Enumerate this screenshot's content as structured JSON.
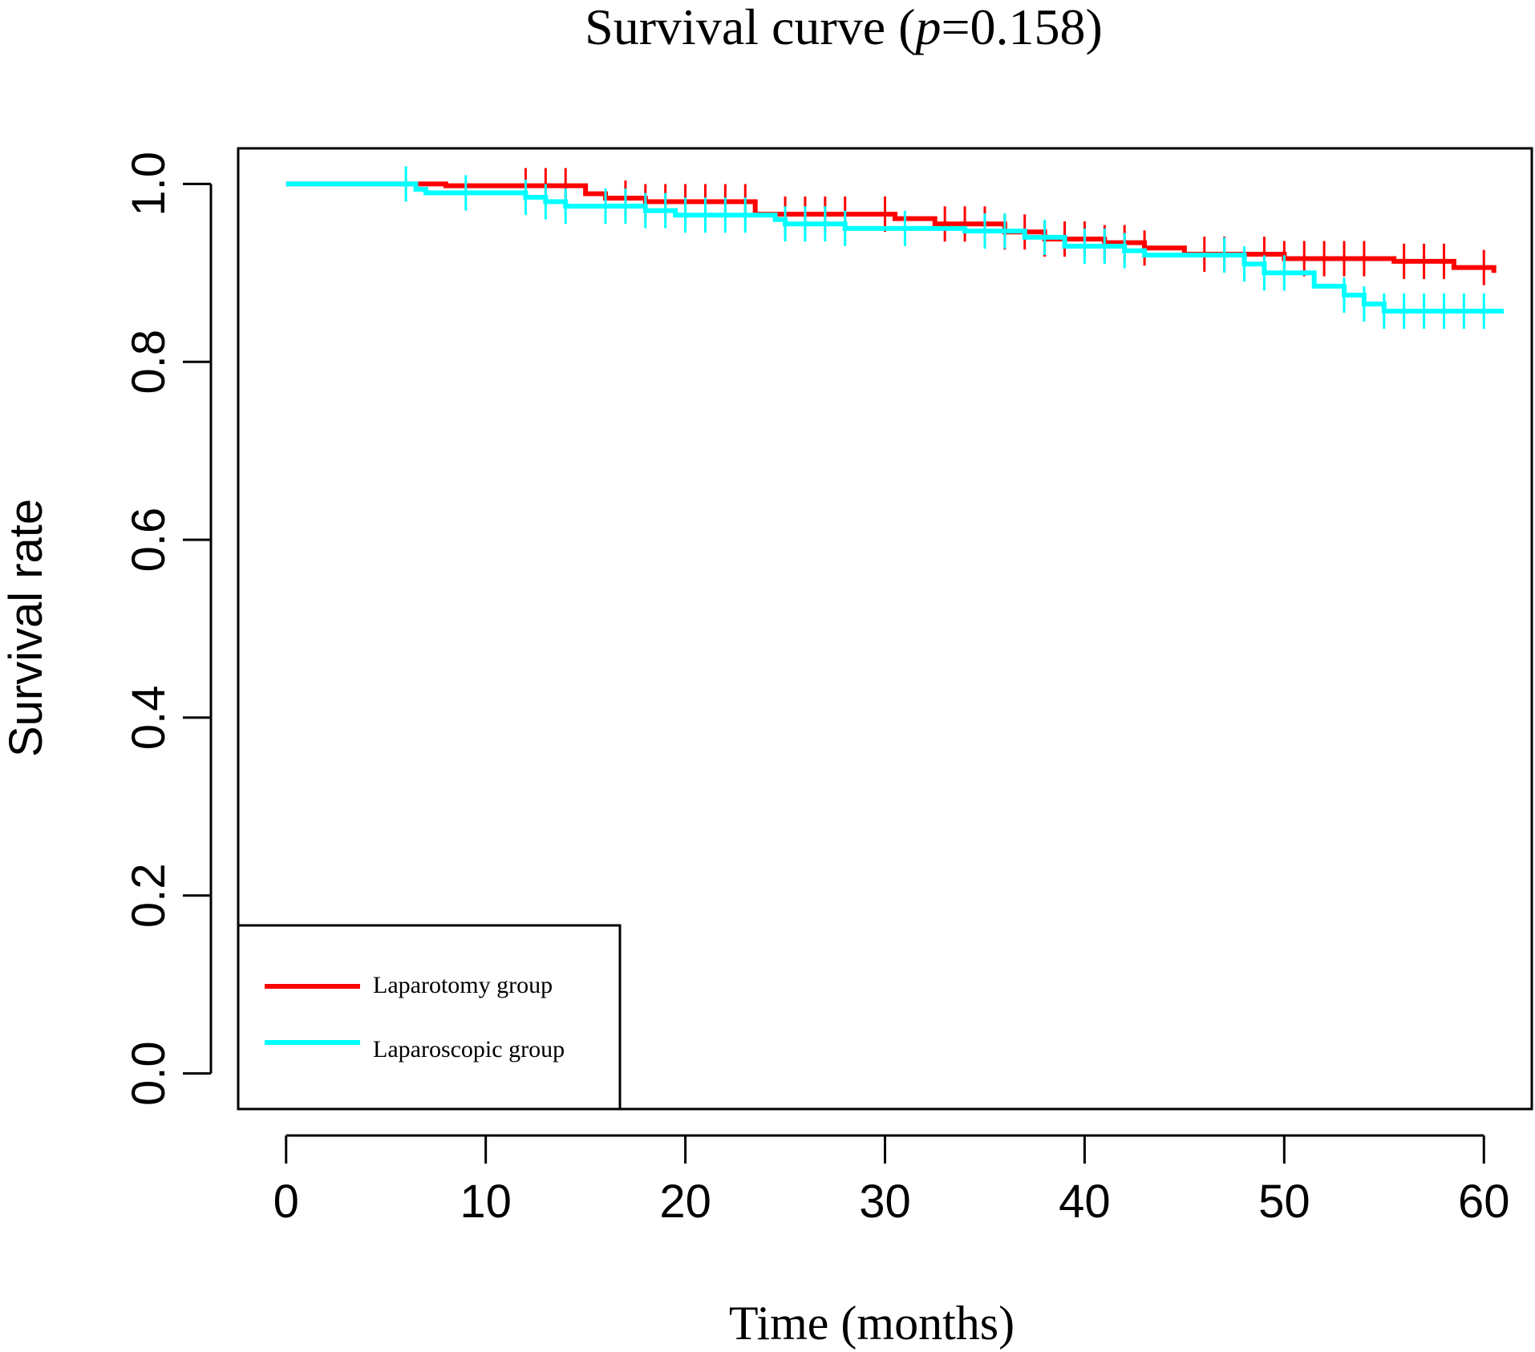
{
  "chart_data": {
    "type": "line",
    "title": {
      "prefix": "Survival curve (",
      "p_symbol": "p",
      "suffix": "=0.158)"
    },
    "xlabel": "Time (months)",
    "ylabel": "Survival rate",
    "xlim": [
      -2.4,
      62.4
    ],
    "ylim": [
      -0.04,
      1.04
    ],
    "x_ticks": [
      0,
      10,
      20,
      30,
      40,
      50,
      60
    ],
    "x_tick_labels": [
      "0",
      "10",
      "20",
      "30",
      "40",
      "50",
      "60"
    ],
    "y_ticks": [
      0.0,
      0.2,
      0.4,
      0.6,
      0.8,
      1.0
    ],
    "y_tick_labels": [
      "0.0",
      "0.2",
      "0.4",
      "0.6",
      "0.8",
      "1.0"
    ],
    "legend_position": "bottom-left",
    "series": [
      {
        "name": "Laparotomy group",
        "color": "#ff0000",
        "steps": [
          [
            0,
            1.0
          ],
          [
            8,
            0.998
          ],
          [
            15,
            0.989
          ],
          [
            16,
            0.984
          ],
          [
            18,
            0.98
          ],
          [
            23.5,
            0.966
          ],
          [
            30.5,
            0.961
          ],
          [
            32.5,
            0.955
          ],
          [
            36,
            0.946
          ],
          [
            38,
            0.938
          ],
          [
            41,
            0.934
          ],
          [
            43,
            0.928
          ],
          [
            45,
            0.921
          ],
          [
            50,
            0.916
          ],
          [
            55.5,
            0.913
          ],
          [
            58.5,
            0.906
          ],
          [
            60.5,
            0.9
          ]
        ],
        "censor_times": [
          12,
          13,
          14,
          17,
          18,
          19,
          20,
          21,
          22,
          23,
          25,
          26,
          27,
          28,
          30,
          33,
          34,
          35,
          36,
          37,
          38,
          39,
          40,
          41,
          42,
          43,
          46,
          47,
          49,
          50,
          51,
          52,
          53,
          54,
          56,
          57,
          58,
          60
        ]
      },
      {
        "name": "Laparoscopic group",
        "color": "#00ffff",
        "steps": [
          [
            0,
            1.0
          ],
          [
            6.5,
            0.994
          ],
          [
            7,
            0.99
          ],
          [
            12,
            0.985
          ],
          [
            13,
            0.98
          ],
          [
            14,
            0.975
          ],
          [
            18,
            0.97
          ],
          [
            19.5,
            0.965
          ],
          [
            24.5,
            0.96
          ],
          [
            25,
            0.955
          ],
          [
            28,
            0.95
          ],
          [
            34,
            0.947
          ],
          [
            37,
            0.94
          ],
          [
            39,
            0.93
          ],
          [
            42,
            0.925
          ],
          [
            43,
            0.92
          ],
          [
            48,
            0.91
          ],
          [
            49,
            0.9
          ],
          [
            51.5,
            0.885
          ],
          [
            53,
            0.875
          ],
          [
            54,
            0.865
          ],
          [
            55,
            0.857
          ],
          [
            61,
            0.857
          ]
        ],
        "censor_times": [
          6,
          9,
          12,
          13,
          14,
          16,
          17,
          18,
          19,
          20,
          21,
          22,
          23,
          25,
          26,
          27,
          28,
          31,
          35,
          36,
          38,
          40,
          41,
          42,
          47,
          48,
          49,
          50,
          53,
          54,
          55,
          56,
          57,
          58,
          59,
          60
        ]
      }
    ]
  }
}
